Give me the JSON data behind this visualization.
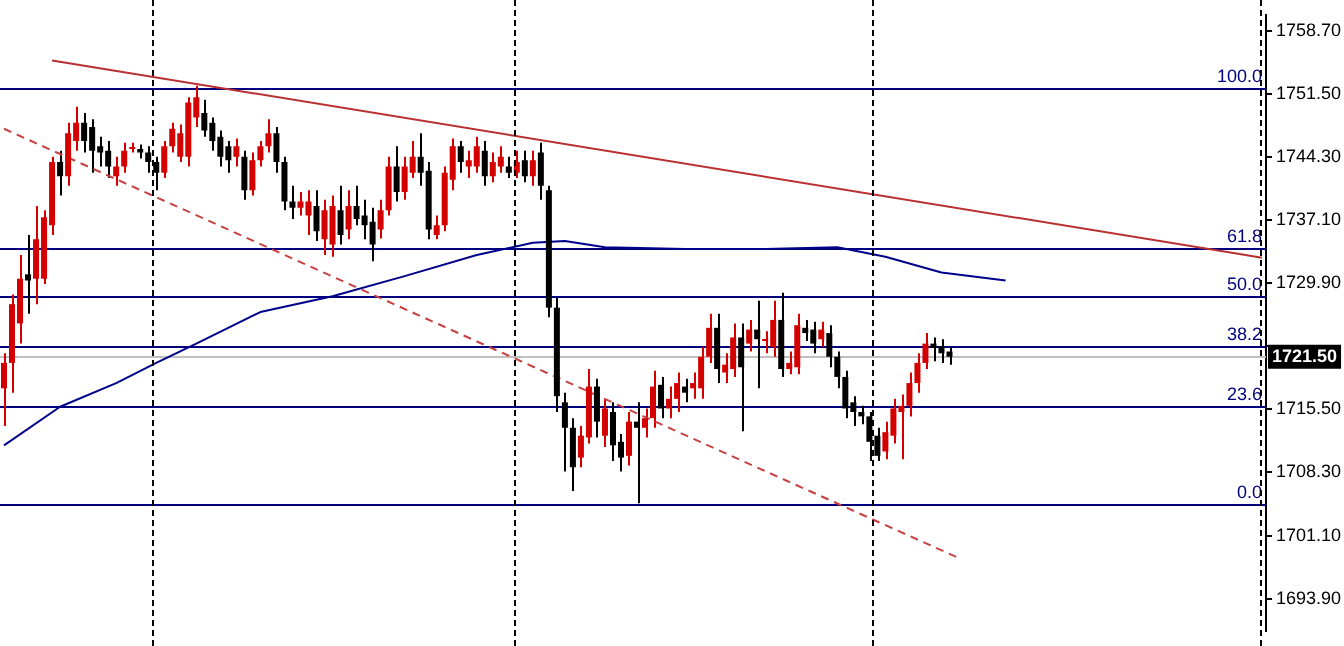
{
  "chart_data": {
    "type": "candlestick",
    "tick_labels": "y",
    "grid": false,
    "legend": false,
    "marker": "none",
    "categories": [
      null,
      null,
      null,
      null,
      null,
      null,
      null,
      null,
      null,
      null,
      null,
      null,
      null,
      null,
      null,
      null,
      null,
      null,
      null,
      null,
      null,
      null,
      null,
      null,
      null,
      null,
      null,
      null,
      null,
      null,
      null,
      null,
      null,
      null,
      null,
      null,
      null,
      null,
      null,
      null,
      null,
      null,
      null,
      null,
      null,
      null,
      null,
      null,
      null,
      null,
      null,
      null,
      null,
      null,
      null,
      null,
      null,
      null,
      null,
      null,
      null,
      null,
      null,
      null,
      null,
      null,
      null,
      null,
      null,
      null,
      null,
      null,
      null,
      null,
      null,
      null,
      null,
      null,
      null,
      null,
      null,
      null,
      null,
      null,
      null,
      null,
      null,
      null,
      null,
      null,
      null,
      null,
      null,
      null,
      null,
      null,
      null,
      null,
      null,
      null,
      null,
      null,
      null,
      null,
      null,
      null,
      null,
      null,
      null,
      null,
      null,
      null,
      null,
      null,
      null,
      null,
      null,
      null,
      null,
      null,
      null,
      null,
      null,
      null,
      null,
      null,
      null,
      null,
      null,
      null,
      null,
      null,
      null,
      null,
      null,
      null,
      null,
      null,
      null,
      null,
      null,
      null,
      null,
      null,
      null,
      null,
      null,
      null,
      null,
      null,
      null,
      null,
      null,
      null,
      null,
      null,
      null,
      null
    ],
    "ylim": [
      1690.2,
      1760.5
    ],
    "yticks": [
      {
        "value": 1693.9,
        "label": "1693.90"
      },
      {
        "value": 1701.1,
        "label": "1701.10"
      },
      {
        "value": 1708.3,
        "label": "1708.30"
      },
      {
        "value": 1715.5,
        "label": "1715.50"
      },
      {
        "value": 1722.7,
        "label": null
      },
      {
        "value": 1729.9,
        "label": "1729.90"
      },
      {
        "value": 1737.1,
        "label": "1737.10"
      },
      {
        "value": 1744.3,
        "label": "1744.30"
      },
      {
        "value": 1751.5,
        "label": "1751.50"
      },
      {
        "value": 1758.7,
        "label": "1758.70"
      }
    ],
    "series": [
      {
        "type": "line",
        "color": "#00008b",
        "values": [
          1711.4,
          null,
          null,
          null,
          null,
          null,
          null,
          1715.8,
          null,
          null,
          null,
          null,
          null,
          null,
          1718.5,
          null,
          null,
          null,
          null,
          1720.8,
          null,
          null,
          null,
          null,
          1723.0,
          null,
          null,
          null,
          null,
          null,
          null,
          null,
          1726.6,
          null,
          null,
          null,
          null,
          null,
          null,
          null,
          null,
          1728.4,
          null,
          null,
          null,
          null,
          null,
          null,
          null,
          null,
          1730.7,
          null,
          null,
          null,
          null,
          null,
          null,
          null,
          null,
          1733.1,
          null,
          null,
          null,
          null,
          null,
          null,
          1734.5,
          null,
          null,
          null,
          1734.7,
          null,
          null,
          null,
          null,
          1734.0,
          null,
          null,
          null,
          null,
          null,
          null,
          null,
          null,
          null,
          1733.8,
          null,
          null,
          null,
          null,
          null,
          null,
          null,
          null,
          null,
          1733.8,
          null,
          null,
          null,
          null,
          null,
          null,
          null,
          null,
          1734.0,
          null,
          null,
          null,
          null,
          null,
          1732.9,
          null,
          null,
          null,
          null,
          null,
          null,
          1731.1,
          null,
          null,
          null,
          null,
          null,
          null,
          null,
          1730.2,
          null,
          null,
          null,
          null,
          null,
          null,
          null,
          null,
          null,
          null,
          null,
          null,
          null,
          null,
          null,
          null,
          null,
          null,
          null,
          null,
          null,
          null,
          null,
          null,
          null,
          null,
          null,
          null,
          null,
          null,
          null,
          null
        ]
      },
      {
        "type": "line",
        "color": "#b83030",
        "values": [
          null,
          null,
          null,
          null,
          null,
          null,
          1755.3,
          null,
          null,
          null,
          null,
          null,
          null,
          null,
          null,
          null,
          null,
          null,
          null,
          null,
          null,
          null,
          null,
          null,
          null,
          null,
          null,
          null,
          null,
          null,
          null,
          null,
          null,
          null,
          null,
          null,
          null,
          null,
          null,
          null,
          null,
          null,
          null,
          null,
          null,
          null,
          null,
          null,
          null,
          null,
          null,
          null,
          null,
          null,
          null,
          null,
          null,
          null,
          null,
          null,
          null,
          null,
          null,
          null,
          null,
          null,
          null,
          null,
          null,
          null,
          null,
          null,
          null,
          null,
          null,
          null,
          null,
          null,
          null,
          null,
          null,
          null,
          null,
          null,
          null,
          null,
          null,
          null,
          null,
          null,
          null,
          null,
          null,
          null,
          null,
          null,
          null,
          null,
          null,
          null,
          null,
          null,
          null,
          null,
          null,
          null,
          null,
          null,
          null,
          null,
          null,
          null,
          null,
          null,
          null,
          null,
          null,
          null,
          null,
          null,
          null,
          null,
          null,
          null,
          null,
          null,
          null,
          null,
          null,
          null,
          null,
          null,
          null,
          null,
          null,
          null,
          null,
          null,
          null,
          null,
          null,
          null,
          null,
          null,
          null,
          null,
          null,
          null,
          null,
          null,
          null,
          null,
          null,
          null,
          null,
          null,
          null,
          1732.8
        ]
      },
      {
        "type": "line",
        "color": "#c84040",
        "line_style": "dashed",
        "values": [
          1747.5,
          null,
          null,
          null,
          null,
          null,
          null,
          null,
          null,
          null,
          null,
          null,
          null,
          null,
          null,
          null,
          null,
          null,
          null,
          null,
          null,
          null,
          null,
          null,
          null,
          null,
          null,
          null,
          null,
          null,
          null,
          null,
          null,
          null,
          null,
          null,
          null,
          null,
          null,
          null,
          null,
          null,
          null,
          null,
          null,
          null,
          null,
          null,
          null,
          null,
          null,
          null,
          null,
          null,
          null,
          null,
          null,
          null,
          null,
          null,
          null,
          null,
          null,
          null,
          null,
          null,
          null,
          null,
          null,
          null,
          null,
          null,
          null,
          null,
          null,
          null,
          null,
          null,
          null,
          null,
          null,
          null,
          null,
          null,
          null,
          null,
          null,
          null,
          null,
          null,
          null,
          null,
          null,
          null,
          null,
          null,
          null,
          null,
          null,
          null,
          null,
          null,
          null,
          null,
          null,
          null,
          null,
          null,
          null,
          null,
          null,
          null,
          null,
          null,
          null,
          null,
          null,
          null,
          null,
          1698.6,
          null,
          null,
          null,
          null,
          null,
          null,
          null,
          null,
          null,
          null,
          null,
          null,
          null,
          null,
          null,
          null,
          null,
          null,
          null,
          null,
          null,
          null,
          null,
          null,
          null,
          null,
          null,
          null,
          null,
          null,
          null,
          null,
          null,
          null,
          null,
          null,
          null,
          null
        ]
      },
      {
        "ohlc": [
          [
            1717.9,
            1721.9,
            1713.6,
            1720.8
          ],
          [
            1720.8,
            1728.6,
            1717.4,
            1727.5
          ],
          [
            1725.3,
            1733.1,
            1723.0,
            1730.4
          ],
          [
            1730.9,
            1735.4,
            1726.4,
            1730.2
          ],
          [
            1730.4,
            1738.7,
            1727.5,
            1734.9
          ],
          [
            1730.4,
            1738.2,
            1729.8,
            1737.4
          ],
          [
            1736.5,
            1744.3,
            1735.4,
            1743.7
          ],
          [
            1743.7,
            1745.0,
            1739.9,
            1742.1
          ],
          [
            1742.1,
            1748.2,
            1741.0,
            1747.0
          ],
          [
            1746.1,
            1750.0,
            1745.0,
            1748.2
          ],
          [
            1748.2,
            1749.3,
            1744.8,
            1746.1
          ],
          [
            1747.7,
            1748.6,
            1742.5,
            1745.0
          ],
          [
            1745.5,
            1746.6,
            1743.2,
            1744.8
          ],
          [
            1745.0,
            1746.1,
            1741.9,
            1743.2
          ],
          [
            1742.1,
            1744.3,
            1741.0,
            1743.2
          ],
          [
            1743.2,
            1745.9,
            1742.5,
            1745.0
          ],
          [
            1745.2,
            1745.9,
            1744.8,
            1745.3
          ],
          [
            1745.2,
            1745.7,
            1744.1,
            1744.8
          ],
          [
            1744.8,
            1745.5,
            1742.5,
            1743.7
          ],
          [
            1743.7,
            1744.3,
            1740.5,
            1742.5
          ],
          [
            1742.5,
            1746.1,
            1741.9,
            1745.5
          ],
          [
            1745.5,
            1748.2,
            1744.8,
            1747.5
          ],
          [
            1744.3,
            1748.0,
            1743.7,
            1747.0
          ],
          [
            1744.3,
            1751.1,
            1743.2,
            1750.5
          ],
          [
            1748.8,
            1752.4,
            1747.7,
            1751.1
          ],
          [
            1749.3,
            1750.8,
            1746.6,
            1747.3
          ],
          [
            1748.2,
            1748.8,
            1745.0,
            1746.1
          ],
          [
            1746.6,
            1747.3,
            1743.2,
            1744.3
          ],
          [
            1745.5,
            1746.1,
            1742.5,
            1743.9
          ],
          [
            1744.3,
            1746.4,
            1743.2,
            1745.5
          ],
          [
            1744.3,
            1745.0,
            1739.4,
            1740.5
          ],
          [
            1740.5,
            1744.8,
            1739.9,
            1743.9
          ],
          [
            1743.9,
            1746.1,
            1743.2,
            1745.5
          ],
          [
            1745.5,
            1748.6,
            1744.8,
            1747.0
          ],
          [
            1747.0,
            1747.7,
            1742.5,
            1743.7
          ],
          [
            1743.7,
            1744.3,
            1738.2,
            1739.2
          ],
          [
            1739.2,
            1741.0,
            1737.2,
            1738.5
          ],
          [
            1738.5,
            1740.3,
            1737.6,
            1739.2
          ],
          [
            1737.6,
            1740.5,
            1735.4,
            1739.2
          ],
          [
            1738.7,
            1740.5,
            1734.7,
            1735.8
          ],
          [
            1734.9,
            1739.4,
            1733.1,
            1738.2
          ],
          [
            1734.3,
            1739.9,
            1732.9,
            1738.7
          ],
          [
            1738.2,
            1741.0,
            1734.3,
            1735.4
          ],
          [
            1736.0,
            1740.5,
            1734.9,
            1738.7
          ],
          [
            1738.7,
            1741.0,
            1736.5,
            1737.2
          ],
          [
            1737.6,
            1739.4,
            1734.9,
            1736.5
          ],
          [
            1736.9,
            1738.5,
            1732.4,
            1734.3
          ],
          [
            1736.0,
            1739.4,
            1735.0,
            1738.2
          ],
          [
            1738.2,
            1744.3,
            1737.6,
            1743.2
          ],
          [
            1743.2,
            1745.5,
            1739.2,
            1740.3
          ],
          [
            1740.3,
            1744.3,
            1739.4,
            1743.2
          ],
          [
            1742.5,
            1746.1,
            1741.9,
            1744.3
          ],
          [
            1744.3,
            1747.0,
            1741.0,
            1742.5
          ],
          [
            1742.7,
            1743.7,
            1734.9,
            1736.0
          ],
          [
            1735.4,
            1737.6,
            1734.9,
            1736.5
          ],
          [
            1736.5,
            1743.2,
            1735.8,
            1742.5
          ],
          [
            1741.7,
            1746.4,
            1740.5,
            1745.5
          ],
          [
            1745.5,
            1746.1,
            1742.5,
            1743.7
          ],
          [
            1743.2,
            1745.0,
            1741.9,
            1743.9
          ],
          [
            1743.2,
            1746.6,
            1742.5,
            1745.5
          ],
          [
            1745.0,
            1746.1,
            1741.0,
            1742.1
          ],
          [
            1742.1,
            1744.8,
            1741.4,
            1743.7
          ],
          [
            1743.2,
            1745.5,
            1742.5,
            1744.3
          ],
          [
            1743.2,
            1744.3,
            1741.9,
            1742.5
          ],
          [
            1742.5,
            1745.0,
            1741.9,
            1743.7
          ],
          [
            1743.9,
            1745.0,
            1741.4,
            1742.1
          ],
          [
            1742.1,
            1745.0,
            1741.0,
            1743.9
          ],
          [
            1744.8,
            1745.9,
            1739.4,
            1741.0
          ],
          [
            1740.5,
            1741.0,
            1726.0,
            1727.1
          ],
          [
            1727.1,
            1728.2,
            1715.2,
            1717.0
          ],
          [
            1716.3,
            1717.4,
            1708.4,
            1713.4
          ],
          [
            1713.4,
            1714.5,
            1706.2,
            1708.9
          ],
          [
            1710.0,
            1713.6,
            1708.9,
            1712.5
          ],
          [
            1712.3,
            1720.1,
            1711.6,
            1718.1
          ],
          [
            1718.1,
            1719.0,
            1712.3,
            1714.1
          ],
          [
            1712.5,
            1716.7,
            1711.2,
            1715.6
          ],
          [
            1715.2,
            1716.3,
            1709.6,
            1711.4
          ],
          [
            1711.8,
            1712.7,
            1708.4,
            1710.0
          ],
          [
            1710.2,
            1715.2,
            1709.1,
            1714.1
          ],
          [
            1714.1,
            1716.3,
            1704.8,
            1713.4
          ],
          [
            1713.4,
            1715.6,
            1712.3,
            1714.5
          ],
          [
            1714.5,
            1719.9,
            1713.4,
            1718.1
          ],
          [
            1718.3,
            1719.2,
            1714.5,
            1715.6
          ],
          [
            1715.6,
            1718.1,
            1714.5,
            1716.7
          ],
          [
            1716.7,
            1719.7,
            1715.2,
            1718.5
          ],
          [
            1718.1,
            1719.0,
            1716.3,
            1717.4
          ],
          [
            1717.9,
            1719.7,
            1716.7,
            1718.5
          ],
          [
            1717.9,
            1722.6,
            1716.7,
            1721.5
          ],
          [
            1721.5,
            1726.4,
            1720.8,
            1724.8
          ],
          [
            1724.8,
            1726.4,
            1718.5,
            1720.1
          ],
          [
            1719.7,
            1721.9,
            1718.5,
            1720.6
          ],
          [
            1720.1,
            1725.3,
            1719.2,
            1723.7
          ],
          [
            1723.7,
            1725.3,
            1713.0,
            1720.3
          ],
          [
            1723.0,
            1725.7,
            1722.1,
            1724.6
          ],
          [
            1724.6,
            1727.9,
            1717.9,
            1723.5
          ],
          [
            1723.3,
            1724.4,
            1721.9,
            1723.5
          ],
          [
            1722.6,
            1727.9,
            1721.5,
            1725.7
          ],
          [
            1725.7,
            1728.8,
            1719.2,
            1720.1
          ],
          [
            1720.1,
            1722.1,
            1719.5,
            1720.8
          ],
          [
            1720.3,
            1726.4,
            1719.5,
            1725.1
          ],
          [
            1724.8,
            1725.7,
            1723.3,
            1724.2
          ],
          [
            1724.6,
            1725.5,
            1721.9,
            1723.0
          ],
          [
            1723.5,
            1725.5,
            1722.6,
            1724.6
          ],
          [
            1724.2,
            1725.1,
            1720.3,
            1721.5
          ],
          [
            1721.5,
            1722.1,
            1717.9,
            1719.2
          ],
          [
            1719.2,
            1719.9,
            1714.5,
            1715.6
          ],
          [
            1716.3,
            1717.0,
            1713.6,
            1715.2
          ],
          [
            1715.2,
            1715.9,
            1713.8,
            1714.7
          ],
          [
            1714.7,
            1715.2,
            1709.6,
            1711.8
          ],
          [
            1712.5,
            1713.4,
            1709.6,
            1710.2
          ],
          [
            1710.7,
            1714.1,
            1709.8,
            1712.9
          ],
          [
            1712.5,
            1716.7,
            1711.6,
            1715.6
          ],
          [
            1715.2,
            1717.2,
            1709.8,
            1715.9
          ],
          [
            1715.9,
            1719.7,
            1714.7,
            1718.5
          ],
          [
            1718.5,
            1721.9,
            1717.4,
            1720.8
          ],
          [
            1720.8,
            1724.2,
            1720.1,
            1723.0
          ],
          [
            1723.0,
            1723.7,
            1721.0,
            1722.5
          ],
          [
            1722.7,
            1723.5,
            1720.8,
            1721.9
          ],
          [
            1722.1,
            1722.6,
            1720.6,
            1721.5
          ],
          null,
          null,
          null,
          null,
          null,
          null,
          null,
          null,
          null,
          null,
          null,
          null,
          null,
          null,
          null,
          null,
          null,
          null,
          null,
          null,
          null,
          null,
          null,
          null,
          null,
          null,
          null,
          null,
          null,
          null,
          null,
          null,
          null,
          null,
          null,
          null,
          null,
          null,
          null
        ],
        "colors": [
          "#d40000",
          "#d40000",
          "#d40000",
          "#000000",
          "#d40000",
          "#d40000",
          "#d40000",
          "#000000",
          "#d40000",
          "#d40000",
          "#000000",
          "#000000",
          "#000000",
          "#000000",
          "#d40000",
          "#d40000",
          "#d40000",
          "#000000",
          "#000000",
          "#000000",
          "#d40000",
          "#d40000",
          "#d40000",
          "#d40000",
          "#d40000",
          "#000000",
          "#000000",
          "#000000",
          "#000000",
          "#d40000",
          "#000000",
          "#d40000",
          "#d40000",
          "#d40000",
          "#000000",
          "#000000",
          "#000000",
          "#d40000",
          "#d40000",
          "#000000",
          "#d40000",
          "#d40000",
          "#000000",
          "#d40000",
          "#000000",
          "#000000",
          "#000000",
          "#d40000",
          "#d40000",
          "#000000",
          "#d40000",
          "#d40000",
          "#000000",
          "#000000",
          "#d40000",
          "#d40000",
          "#d40000",
          "#000000",
          "#d40000",
          "#d40000",
          "#000000",
          "#d40000",
          "#d40000",
          "#000000",
          "#d40000",
          "#000000",
          "#d40000",
          "#000000",
          "#000000",
          "#000000",
          "#000000",
          "#000000",
          "#d40000",
          "#d40000",
          "#000000",
          "#d40000",
          "#000000",
          "#000000",
          "#d40000",
          "#000000",
          "#d40000",
          "#d40000",
          "#000000",
          "#d40000",
          "#d40000",
          "#000000",
          "#d40000",
          "#d40000",
          "#d40000",
          "#000000",
          "#d40000",
          "#d40000",
          "#000000",
          "#d40000",
          "#000000",
          "#d40000",
          "#d40000",
          "#000000",
          "#d40000",
          "#d40000",
          "#000000",
          "#000000",
          "#d40000",
          "#000000",
          "#000000",
          "#000000",
          "#000000",
          "#000000",
          "#000000",
          "#000000",
          "#d40000",
          "#d40000",
          "#d40000",
          "#d40000",
          "#d40000",
          "#d40000",
          "#000000",
          "#000000",
          "#000000",
          null,
          null,
          null,
          null,
          null,
          null,
          null,
          null,
          null,
          null,
          null,
          null,
          null,
          null,
          null,
          null,
          null,
          null,
          null,
          null,
          null,
          null,
          null,
          null,
          null,
          null,
          null,
          null,
          null,
          null,
          null,
          null,
          null,
          null,
          null,
          null,
          null,
          null,
          null
        ]
      }
    ],
    "ref_lines": [
      {
        "axis": "y",
        "value": 1752.2,
        "color": "#000080"
      },
      {
        "axis": "y",
        "value": 1734.0,
        "color": "#000080"
      },
      {
        "axis": "y",
        "value": 1728.4,
        "color": "#000080"
      },
      {
        "axis": "y",
        "value": 1722.8,
        "color": "#000080"
      },
      {
        "axis": "y",
        "value": 1715.8,
        "color": "#000080"
      },
      {
        "axis": "y",
        "value": 1704.6,
        "color": "#000080"
      },
      {
        "axis": "y",
        "value": 1721.5,
        "label": "1721.50",
        "color": "#c0c0c0"
      }
    ],
    "annotations": [
      {
        "text": "100.0",
        "y": 1752.2
      },
      {
        "text": "61.8",
        "y": 1734.0
      },
      {
        "text": "50.0",
        "y": 1728.4
      },
      {
        "text": "38.2",
        "y": 1722.8
      },
      {
        "text": "23.6",
        "y": 1715.8
      },
      {
        "text": "0.0",
        "y": 1704.6
      }
    ]
  }
}
